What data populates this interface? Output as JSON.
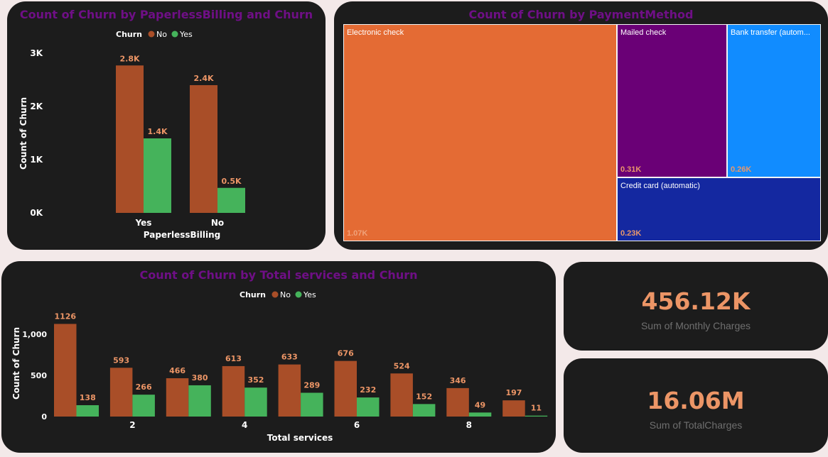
{
  "colors": {
    "no": "#a94e28",
    "yes": "#45b35b",
    "value_label": "#ec9566",
    "title": "#6f0f86"
  },
  "paperless": {
    "title": "Count of Churn by PaperlessBilling and Churn",
    "legend_title": "Churn",
    "legend": [
      "No",
      "Yes"
    ],
    "ylabel": "Count of Churn",
    "xlabel": "PaperlessBilling",
    "yticks": [
      "0K",
      "1K",
      "2K",
      "3K"
    ]
  },
  "payment": {
    "title": "Count of Churn by PaymentMethod",
    "cells": [
      {
        "name": "Electronic check",
        "value": "1.07K",
        "color": "#e46b34"
      },
      {
        "name": "Mailed check",
        "value": "0.31K",
        "color": "#6a0076"
      },
      {
        "name": "Bank transfer (autom...",
        "value": "0.26K",
        "color": "#118cff"
      },
      {
        "name": "Credit card (automatic)",
        "value": "0.23K",
        "color": "#1428a0"
      }
    ]
  },
  "services": {
    "title": "Count of Churn by Total services and Churn",
    "legend_title": "Churn",
    "legend": [
      "No",
      "Yes"
    ],
    "ylabel": "Count of Churn",
    "xlabel": "Total services",
    "yticks": [
      "0",
      "500",
      "1,000"
    ],
    "xticks": [
      "2",
      "4",
      "6",
      "8"
    ]
  },
  "kpi_monthly": {
    "value": "456.12K",
    "label": "Sum of Monthly Charges"
  },
  "kpi_total": {
    "value": "16.06M",
    "label": "Sum of TotalCharges"
  },
  "chart_data": [
    {
      "type": "bar",
      "title": "Count of Churn by PaperlessBilling and Churn",
      "xlabel": "PaperlessBilling",
      "ylabel": "Count of Churn",
      "categories": [
        "Yes",
        "No"
      ],
      "ylim": [
        0,
        3000
      ],
      "series": [
        {
          "name": "No",
          "values": [
            2770,
            2400
          ],
          "labels": [
            "2.8K",
            "2.4K"
          ]
        },
        {
          "name": "Yes",
          "values": [
            1400,
            470
          ],
          "labels": [
            "1.4K",
            "0.5K"
          ]
        }
      ]
    },
    {
      "type": "treemap",
      "title": "Count of Churn by PaymentMethod",
      "categories": [
        "Electronic check",
        "Mailed check",
        "Bank transfer (autom...",
        "Credit card (automatic)"
      ],
      "values": [
        1070,
        310,
        260,
        230
      ]
    },
    {
      "type": "bar",
      "title": "Count of Churn by Total services and Churn",
      "xlabel": "Total services",
      "ylabel": "Count of Churn",
      "x": [
        1,
        2,
        3,
        4,
        5,
        6,
        7,
        8,
        9
      ],
      "ylim": [
        0,
        1130
      ],
      "series": [
        {
          "name": "No",
          "values": [
            1126,
            593,
            466,
            613,
            633,
            676,
            524,
            346,
            197
          ]
        },
        {
          "name": "Yes",
          "values": [
            138,
            266,
            380,
            352,
            289,
            232,
            152,
            49,
            11
          ]
        }
      ]
    }
  ]
}
